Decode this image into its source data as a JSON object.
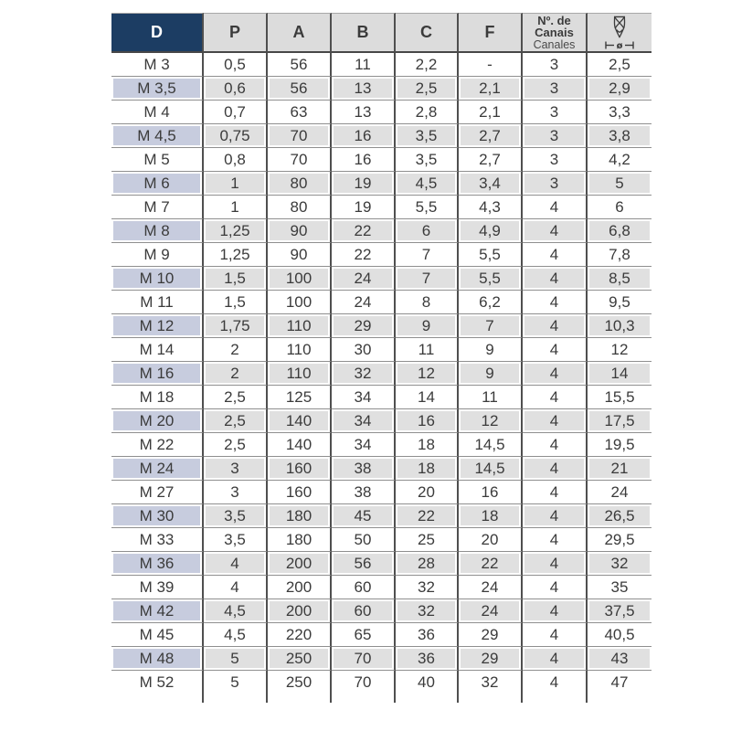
{
  "colors": {
    "header_navy": "#1c3d63",
    "header_gray": "#dcdcdc",
    "row_white": "#ffffff",
    "row_gray": "#e0e0e0",
    "row_accent_lavender": "#c7ccde",
    "grid_vertical": "#4f4f4f",
    "grid_horizontal": "#8f8f8f",
    "text": "#3b3b3b",
    "header_text_on_navy": "#ffffff"
  },
  "table": {
    "col_d": "D",
    "col_p": "P",
    "col_a": "A",
    "col_b": "B",
    "col_c": "C",
    "col_f": "F",
    "col_flutes_line1": "Nº. de",
    "col_flutes_line2": "Canais",
    "col_flutes_line3": "Canales",
    "col_diameter_symbol": "ø",
    "icons": {
      "drill_bit": "drill-bit-icon",
      "diameter_measure": "diameter-measure-icon"
    },
    "rows": [
      [
        "M 3",
        "0,5",
        "56",
        "11",
        "2,2",
        "-",
        "3",
        "2,5"
      ],
      [
        "M 3,5",
        "0,6",
        "56",
        "13",
        "2,5",
        "2,1",
        "3",
        "2,9"
      ],
      [
        "M 4",
        "0,7",
        "63",
        "13",
        "2,8",
        "2,1",
        "3",
        "3,3"
      ],
      [
        "M 4,5",
        "0,75",
        "70",
        "16",
        "3,5",
        "2,7",
        "3",
        "3,8"
      ],
      [
        "M 5",
        "0,8",
        "70",
        "16",
        "3,5",
        "2,7",
        "3",
        "4,2"
      ],
      [
        "M 6",
        "1",
        "80",
        "19",
        "4,5",
        "3,4",
        "3",
        "5"
      ],
      [
        "M 7",
        "1",
        "80",
        "19",
        "5,5",
        "4,3",
        "4",
        "6"
      ],
      [
        "M 8",
        "1,25",
        "90",
        "22",
        "6",
        "4,9",
        "4",
        "6,8"
      ],
      [
        "M 9",
        "1,25",
        "90",
        "22",
        "7",
        "5,5",
        "4",
        "7,8"
      ],
      [
        "M 10",
        "1,5",
        "100",
        "24",
        "7",
        "5,5",
        "4",
        "8,5"
      ],
      [
        "M 11",
        "1,5",
        "100",
        "24",
        "8",
        "6,2",
        "4",
        "9,5"
      ],
      [
        "M 12",
        "1,75",
        "110",
        "29",
        "9",
        "7",
        "4",
        "10,3"
      ],
      [
        "M 14",
        "2",
        "110",
        "30",
        "11",
        "9",
        "4",
        "12"
      ],
      [
        "M 16",
        "2",
        "110",
        "32",
        "12",
        "9",
        "4",
        "14"
      ],
      [
        "M 18",
        "2,5",
        "125",
        "34",
        "14",
        "11",
        "4",
        "15,5"
      ],
      [
        "M 20",
        "2,5",
        "140",
        "34",
        "16",
        "12",
        "4",
        "17,5"
      ],
      [
        "M 22",
        "2,5",
        "140",
        "34",
        "18",
        "14,5",
        "4",
        "19,5"
      ],
      [
        "M 24",
        "3",
        "160",
        "38",
        "18",
        "14,5",
        "4",
        "21"
      ],
      [
        "M 27",
        "3",
        "160",
        "38",
        "20",
        "16",
        "4",
        "24"
      ],
      [
        "M 30",
        "3,5",
        "180",
        "45",
        "22",
        "18",
        "4",
        "26,5"
      ],
      [
        "M 33",
        "3,5",
        "180",
        "50",
        "25",
        "20",
        "4",
        "29,5"
      ],
      [
        "M 36",
        "4",
        "200",
        "56",
        "28",
        "22",
        "4",
        "32"
      ],
      [
        "M 39",
        "4",
        "200",
        "60",
        "32",
        "24",
        "4",
        "35"
      ],
      [
        "M 42",
        "4,5",
        "200",
        "60",
        "32",
        "24",
        "4",
        "37,5"
      ],
      [
        "M 45",
        "4,5",
        "220",
        "65",
        "36",
        "29",
        "4",
        "40,5"
      ],
      [
        "M 48",
        "5",
        "250",
        "70",
        "36",
        "29",
        "4",
        "43"
      ],
      [
        "M 52",
        "5",
        "250",
        "70",
        "40",
        "32",
        "4",
        "47"
      ]
    ]
  }
}
